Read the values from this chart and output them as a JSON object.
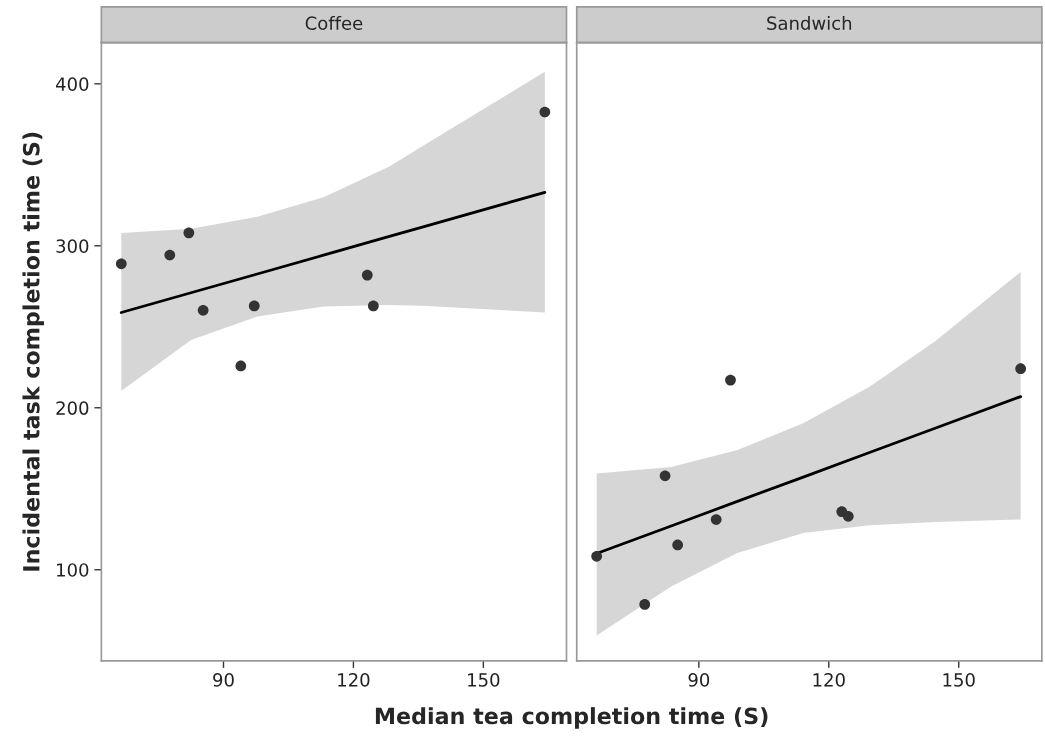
{
  "chart_data": [
    {
      "type": "scatter",
      "title": "Coffee",
      "xlabel": "Median tea completion time (S)",
      "ylabel": "Incidental task completion time (S)",
      "xlim": [
        61.8,
        169.2
      ],
      "ylim": [
        43.7,
        425.4
      ],
      "xticks": [
        90,
        120,
        150
      ],
      "yticks": [
        100,
        200,
        300,
        400
      ],
      "grid": false,
      "series": [
        {
          "marker": "circle",
          "color": "#333333",
          "x": [
            66.4,
            77.6,
            82.0,
            85.3,
            94.0,
            97.1,
            123.2,
            124.6,
            164.2
          ],
          "values": [
            288.9,
            294.3,
            308.0,
            260.2,
            225.8,
            262.9,
            281.9,
            262.9,
            382.6
          ]
        },
        {
          "type": "line",
          "marker": "none",
          "color": "#000000",
          "x": [
            66.4,
            82.5,
            97.8,
            113.1,
            128.3,
            135.9,
            164.2
          ],
          "values": [
            258.8,
            271.0,
            282.6,
            294.2,
            305.8,
            311.5,
            333.0
          ],
          "lower": [
            210.3,
            241.9,
            256.3,
            262.5,
            263.5,
            263.0,
            258.8
          ],
          "upper": [
            307.9,
            310.5,
            318.0,
            330.0,
            349.0,
            361.4,
            407.4
          ]
        }
      ]
    },
    {
      "type": "scatter",
      "title": "Sandwich",
      "xlim": [
        61.8,
        169.2
      ],
      "ylim": [
        43.7,
        425.4
      ],
      "xticks": [
        90,
        120,
        150
      ],
      "yticks": [
        100,
        200,
        300,
        400
      ],
      "tick_labels": "x",
      "grid": false,
      "series": [
        {
          "marker": "circle",
          "color": "#333333",
          "x": [
            66.4,
            77.5,
            82.2,
            85.1,
            94.0,
            97.3,
            123.0,
            124.5,
            164.3
          ],
          "values": [
            108.3,
            78.6,
            158.0,
            115.3,
            131.0,
            217.1,
            135.9,
            133.0,
            224.1
          ]
        },
        {
          "type": "line",
          "marker": "none",
          "color": "#000000",
          "x": [
            66.4,
            83.6,
            98.9,
            114.1,
            129.4,
            144.7,
            164.3
          ],
          "values": [
            110.0,
            127.0,
            142.2,
            157.2,
            172.4,
            187.5,
            206.9
          ],
          "lower": [
            59.4,
            89.7,
            110.3,
            122.7,
            127.5,
            129.5,
            131.0
          ],
          "upper": [
            159.4,
            163.5,
            173.9,
            190.4,
            213.0,
            241.4,
            283.9
          ]
        }
      ]
    }
  ]
}
